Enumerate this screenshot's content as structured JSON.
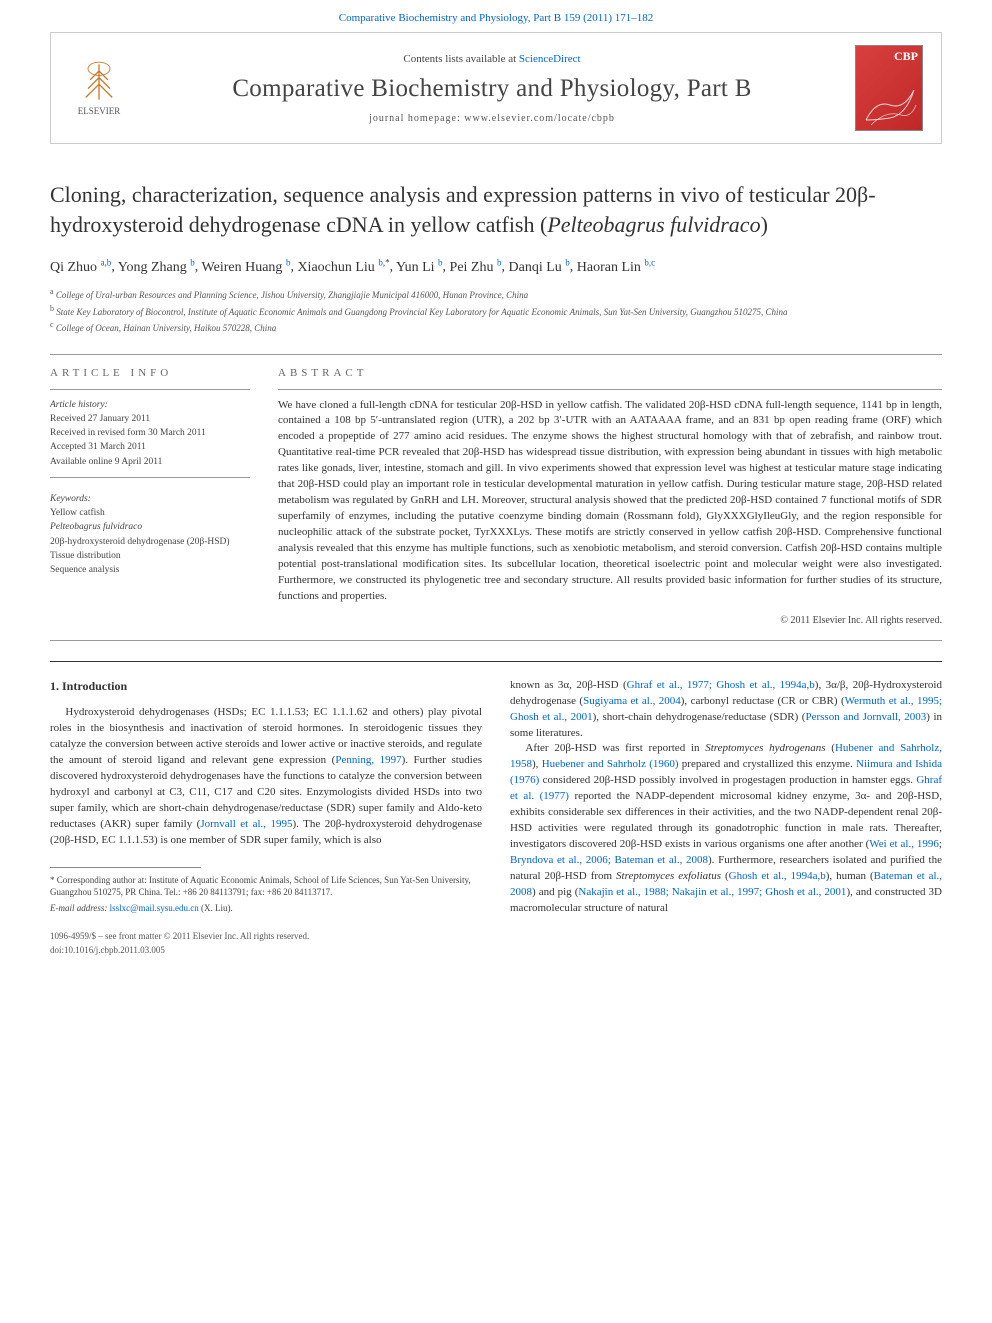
{
  "header": {
    "topLink": "Comparative Biochemistry and Physiology, Part B 159 (2011) 171–182",
    "contentsPrefix": "Contents lists available at ",
    "contentsLink": "ScienceDirect",
    "journalName": "Comparative Biochemistry and Physiology, Part B",
    "homepagePrefix": "journal homepage: ",
    "homepageUrl": "www.elsevier.com/locate/cbpb",
    "elsevierLabel": "ELSEVIER",
    "cbpLabel": "CBP"
  },
  "title": {
    "line1": "Cloning, characterization, sequence analysis and expression patterns in vivo of testicular 20β-hydroxysteroid dehydrogenase cDNA in yellow catfish (",
    "speciesItalic": "Pelteobagrus fulvidraco",
    "line3": ")"
  },
  "authors": [
    {
      "name": "Qi Zhuo",
      "sup": "a,b"
    },
    {
      "name": "Yong Zhang",
      "sup": "b"
    },
    {
      "name": "Weiren Huang",
      "sup": "b"
    },
    {
      "name": "Xiaochun Liu",
      "sup": "b,*",
      "corresponding": true
    },
    {
      "name": "Yun Li",
      "sup": "b"
    },
    {
      "name": "Pei Zhu",
      "sup": "b"
    },
    {
      "name": "Danqi Lu",
      "sup": "b"
    },
    {
      "name": "Haoran Lin",
      "sup": "b,c"
    }
  ],
  "affiliations": [
    {
      "sup": "a",
      "text": "College of Ural-urban Resources and Planning Science, Jishou University, Zhangjiajie Municipal 416000, Hunan Province, China"
    },
    {
      "sup": "b",
      "text": "State Key Laboratory of Biocontrol, Institute of Aquatic Economic Animals and Guangdong Provincial Key Laboratory for Aquatic Economic Animals, Sun Yat-Sen University, Guangzhou 510275, China"
    },
    {
      "sup": "c",
      "text": "College of Ocean, Hainan University, Haikou 570228, China"
    }
  ],
  "articleInfo": {
    "sectionLabel": "ARTICLE INFO",
    "historyLabel": "Article history:",
    "received": "Received 27 January 2011",
    "revised": "Received in revised form 30 March 2011",
    "accepted": "Accepted 31 March 2011",
    "online": "Available online 9 April 2011",
    "keywordsLabel": "Keywords:",
    "keywords": [
      "Yellow catfish",
      "Pelteobagrus fulvidraco",
      "20β-hydroxysteroid dehydrogenase (20β-HSD)",
      "Tissue distribution",
      "Sequence analysis"
    ]
  },
  "abstract": {
    "sectionLabel": "ABSTRACT",
    "text": "We have cloned a full-length cDNA for testicular 20β-HSD in yellow catfish. The validated 20β-HSD cDNA full-length sequence, 1141 bp in length, contained a 108 bp 5′-untranslated region (UTR), a 202 bp 3′-UTR with an AATAAAA frame, and an 831 bp open reading frame (ORF) which encoded a propeptide of 277 amino acid residues. The enzyme shows the highest structural homology with that of zebrafish, and rainbow trout. Quantitative real-time PCR revealed that 20β-HSD has widespread tissue distribution, with expression being abundant in tissues with high metabolic rates like gonads, liver, intestine, stomach and gill. In vivo experiments showed that expression level was highest at testicular mature stage indicating that 20β-HSD could play an important role in testicular developmental maturation in yellow catfish. During testicular mature stage, 20β-HSD related metabolism was regulated by GnRH and LH. Moreover, structural analysis showed that the predicted 20β-HSD contained 7 functional motifs of SDR superfamily of enzymes, including the putative coenzyme binding domain (Rossmann fold), GlyXXXGlyIleuGly, and the region responsible for nucleophilic attack of the substrate pocket, TyrXXXLys. These motifs are strictly conserved in yellow catfish 20β-HSD. Comprehensive functional analysis revealed that this enzyme has multiple functions, such as xenobiotic metabolism, and steroid conversion. Catfish 20β-HSD contains multiple potential post-translational modification sites. Its subcellular location, theoretical isoelectric point and molecular weight were also investigated. Furthermore, we constructed its phylogenetic tree and secondary structure. All results provided basic information for further studies of its structure, functions and properties.",
    "copyright": "© 2011 Elsevier Inc. All rights reserved."
  },
  "intro": {
    "heading": "1. Introduction",
    "col1": {
      "p1a": "Hydroxysteroid dehydrogenases (HSDs; EC 1.1.1.53; EC 1.1.1.62 and others) play pivotal roles in the biosynthesis and inactivation of steroid hormones. In steroidogenic tissues they catalyze the conversion between active steroids and lower active or inactive steroids, and regulate the amount of steroid ligand and relevant gene expression (",
      "link1": "Penning, 1997",
      "p1b": "). Further studies discovered hydroxysteroid dehydrogenases have the functions to catalyze the conversion between hydroxyl and carbonyl at C3, C11, C17 and C20 sites. Enzymologists divided HSDs into two super family, which are short-chain dehydrogenase/reductase (SDR) super family and Aldo-keto reductases (AKR) super family (",
      "link2": "Jornvall et al., 1995",
      "p1c": "). The 20β-hydroxysteroid dehydrogenase (20β-HSD, EC 1.1.1.53) is one member of SDR super family, which is also"
    },
    "col2": {
      "p1a": "known as 3α, 20β-HSD (",
      "link1": "Ghraf et al., 1977; Ghosh et al., 1994a,b",
      "p1b": "), 3α/β, 20β-Hydroxysteroid dehydrogenase (",
      "link2": "Sugiyama et al., 2004",
      "p1c": "), carbonyl reductase (CR or CBR) (",
      "link3": "Wermuth et al., 1995; Ghosh et al., 2001",
      "p1d": "), short-chain dehydrogenase/reductase (SDR) (",
      "link4": "Persson and Jornvall, 2003",
      "p1e": ") in some literatures.",
      "p2a": "After 20β-HSD was first reported in ",
      "sp1": "Streptomyces hydrogenans",
      "p2b": " (",
      "link5": "Hubener and Sahrholz, 1958",
      "p2c": "), ",
      "link6": "Huebener and Sahrholz (1960)",
      "p2d": " prepared and crystallized this enzyme. ",
      "link7": "Niimura and Ishida (1976)",
      "p2e": " considered 20β-HSD possibly involved in progestagen production in hamster eggs. ",
      "link8": "Ghraf et al. (1977)",
      "p2f": " reported the NADP-dependent microsomal kidney enzyme, 3α- and 20β-HSD, exhibits considerable sex differences in their activities, and the two NADP-dependent renal 20β-HSD activities were regulated through its gonadotrophic function in male rats. Thereafter, investigators discovered 20β-HSD exists in various organisms one after another (",
      "link9": "Wei et al., 1996",
      "p2g": "; ",
      "link10": "Bryndova et al., 2006; Bateman et al., 2008",
      "p2h": "). Furthermore, researchers isolated and purified the natural 20β-HSD from ",
      "sp2": "Streptomyces exfoliatus",
      "p2i": " (",
      "link11": "Ghosh et al., 1994a,b",
      "p2j": "), human (",
      "link12": "Bateman et al., 2008",
      "p2k": ") and pig (",
      "link13": "Nakajin et al., 1988; Nakajin et al., 1997; Ghosh et al., 2001",
      "p2l": "), and constructed 3D macromolecular structure of natural"
    }
  },
  "footnote": {
    "corrLabel": "* Corresponding author at: Institute of Aquatic Economic Animals, School of Life Sciences, Sun Yat-Sen University, Guangzhou 510275, PR China. Tel.: +86 20 84113791; fax: +86 20 84113717.",
    "emailLabel": "E-mail address:",
    "email": "lsslxc@mail.sysu.edu.cn",
    "emailSuffix": " (X. Liu)."
  },
  "footer": {
    "line1": "1096-4959/$ – see front matter © 2011 Elsevier Inc. All rights reserved.",
    "line2": "doi:10.1016/j.cbpb.2011.03.005"
  },
  "colors": {
    "link": "#0066cc",
    "text": "#333333",
    "muted": "#555555",
    "border": "#cccccc",
    "cbpBg": "#d84040"
  }
}
